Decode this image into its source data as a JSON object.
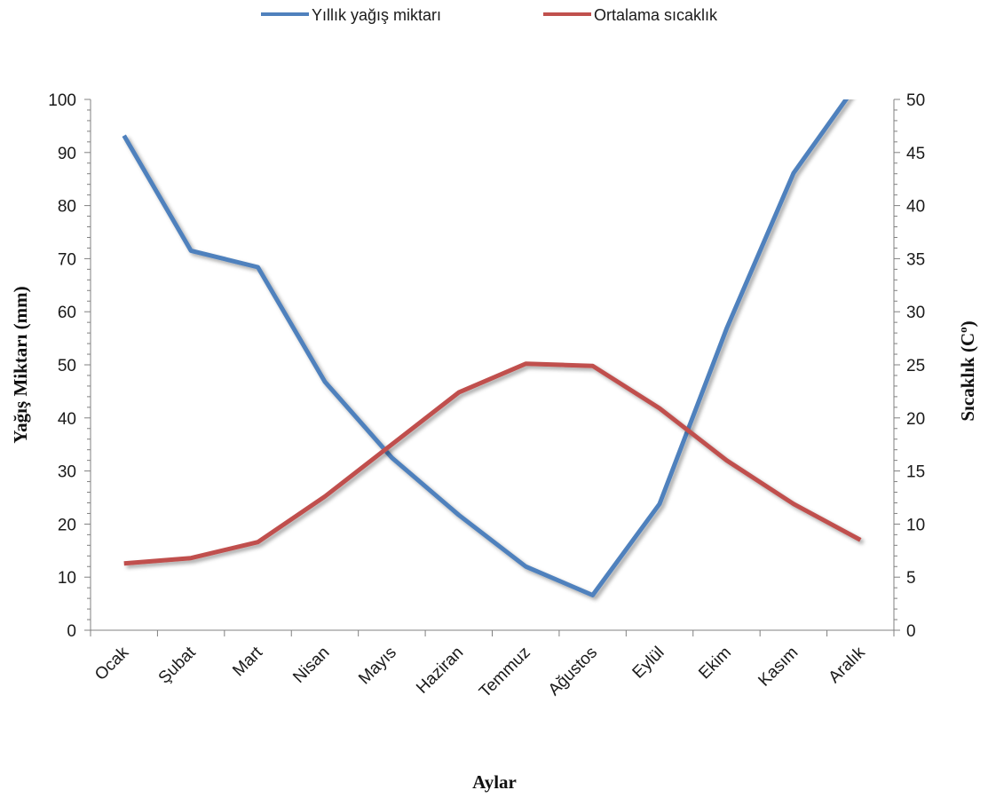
{
  "chart_data": {
    "type": "line",
    "categories": [
      "Ocak",
      "Şubat",
      "Mart",
      "Nisan",
      "Mayıs",
      "Haziran",
      "Temmuz",
      "Ağustos",
      "Eylül",
      "Ekim",
      "Kasım",
      "Aralık"
    ],
    "series": [
      {
        "name": "Yıllık yağış miktarı",
        "axis": "left",
        "color": "#4f81bd",
        "values": [
          93.2,
          71.5,
          68.4,
          46.8,
          32.5,
          21.7,
          12.0,
          6.6,
          23.8,
          56.8,
          86.1,
          103.8
        ]
      },
      {
        "name": "Ortalama sıcaklık",
        "axis": "right",
        "color": "#c0504d",
        "values": [
          6.3,
          6.8,
          8.3,
          12.6,
          17.5,
          22.4,
          25.1,
          24.9,
          20.9,
          16.0,
          11.9,
          8.5
        ]
      }
    ],
    "xlabel": "Aylar",
    "ylabel_left": "Yağış Miktarı (mm)",
    "ylabel_right": "Sıcaklık (C",
    "ylabel_right_superscript": "o",
    "ylabel_right_close": ")",
    "ylim_left": [
      0,
      100
    ],
    "ylim_right": [
      0,
      50
    ],
    "yticks_left": [
      "0",
      "10",
      "20",
      "30",
      "40",
      "50",
      "60",
      "70",
      "80",
      "90",
      "100"
    ],
    "yticks_right": [
      "0",
      "5",
      "10",
      "15",
      "20",
      "25",
      "30",
      "35",
      "40",
      "45",
      "50"
    ],
    "grid": false,
    "legend_position": "top-center"
  }
}
